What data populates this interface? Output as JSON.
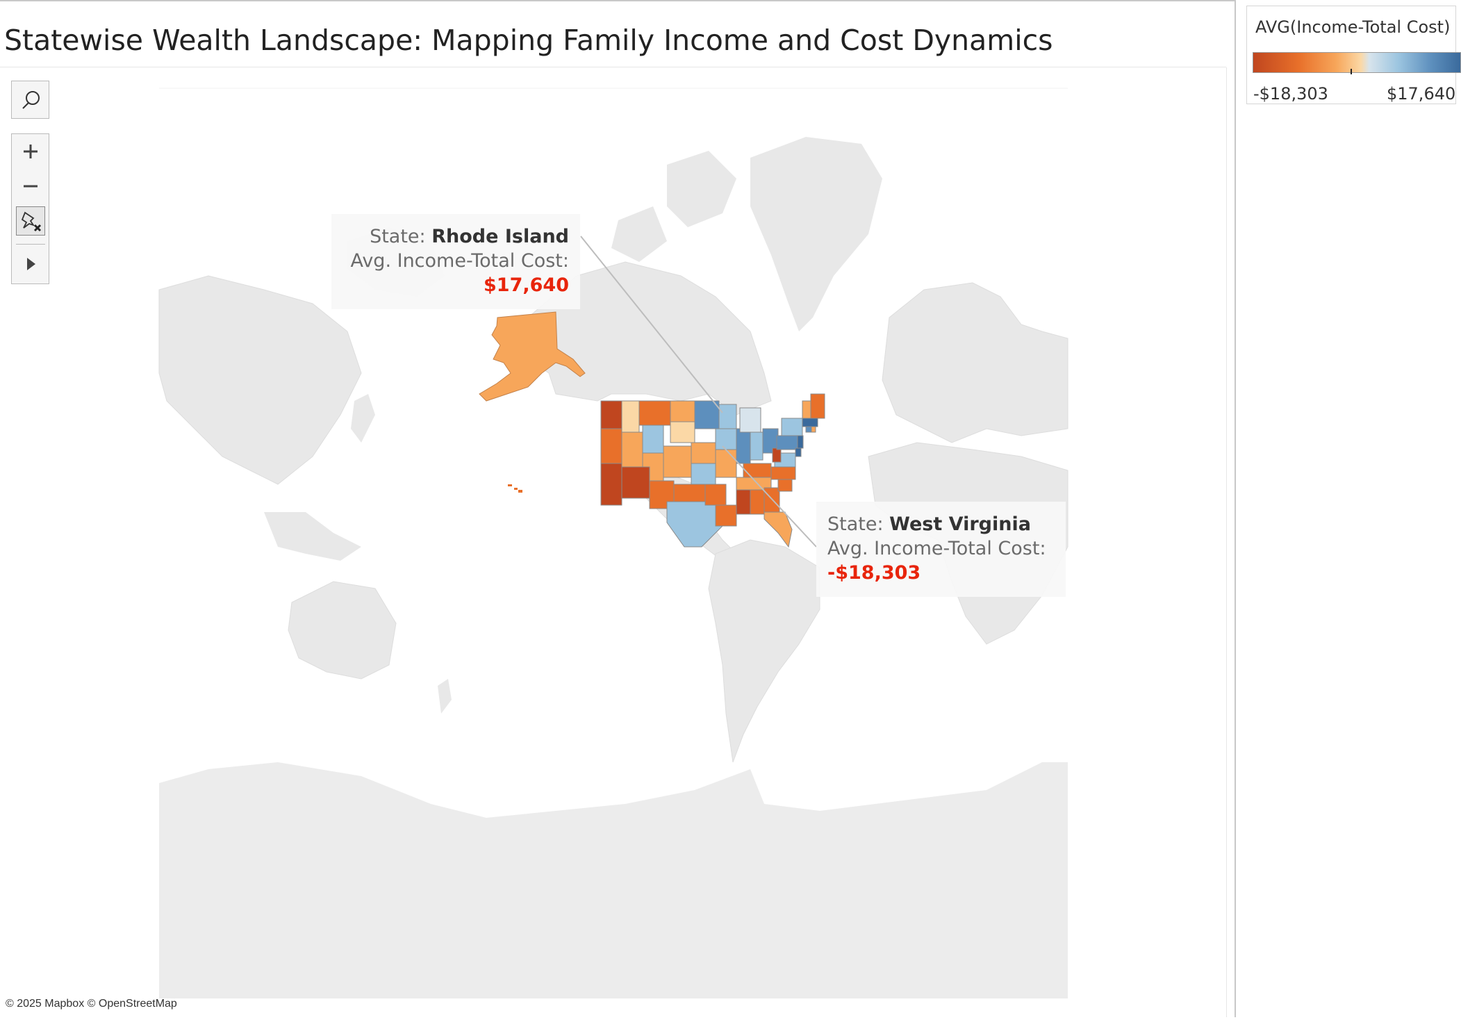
{
  "title": "Statewise Wealth Landscape: Mapping Family Income and Cost Dynamics",
  "toolbar": {
    "search_icon": "search-icon",
    "zoom_in_icon": "plus-icon",
    "zoom_out_icon": "minus-icon",
    "pin_icon": "unpin-icon",
    "expand_icon": "play-icon"
  },
  "tooltips": [
    {
      "state_label": "State:",
      "state": "Rhode Island",
      "metric_label": "Avg. Income-Total Cost:",
      "value": "$17,640"
    },
    {
      "state_label": "State:",
      "state": "West Virginia",
      "metric_label": "Avg. Income-Total Cost:",
      "value": "-$18,303"
    }
  ],
  "legend": {
    "title": "AVG(Income-Total Cost)",
    "min": "-$18,303",
    "max": "$17,640",
    "colors": [
      "#c0461f",
      "#e8702a",
      "#f7a65a",
      "#fbd8a6",
      "#9cc5e0",
      "#5d8fbd",
      "#3a6a9c"
    ]
  },
  "attribution": "© 2025 Mapbox © OpenStreetMap",
  "colors": {
    "land": "#e8e8e8",
    "water": "#ffffff",
    "highlight_value": "#e8250c"
  }
}
